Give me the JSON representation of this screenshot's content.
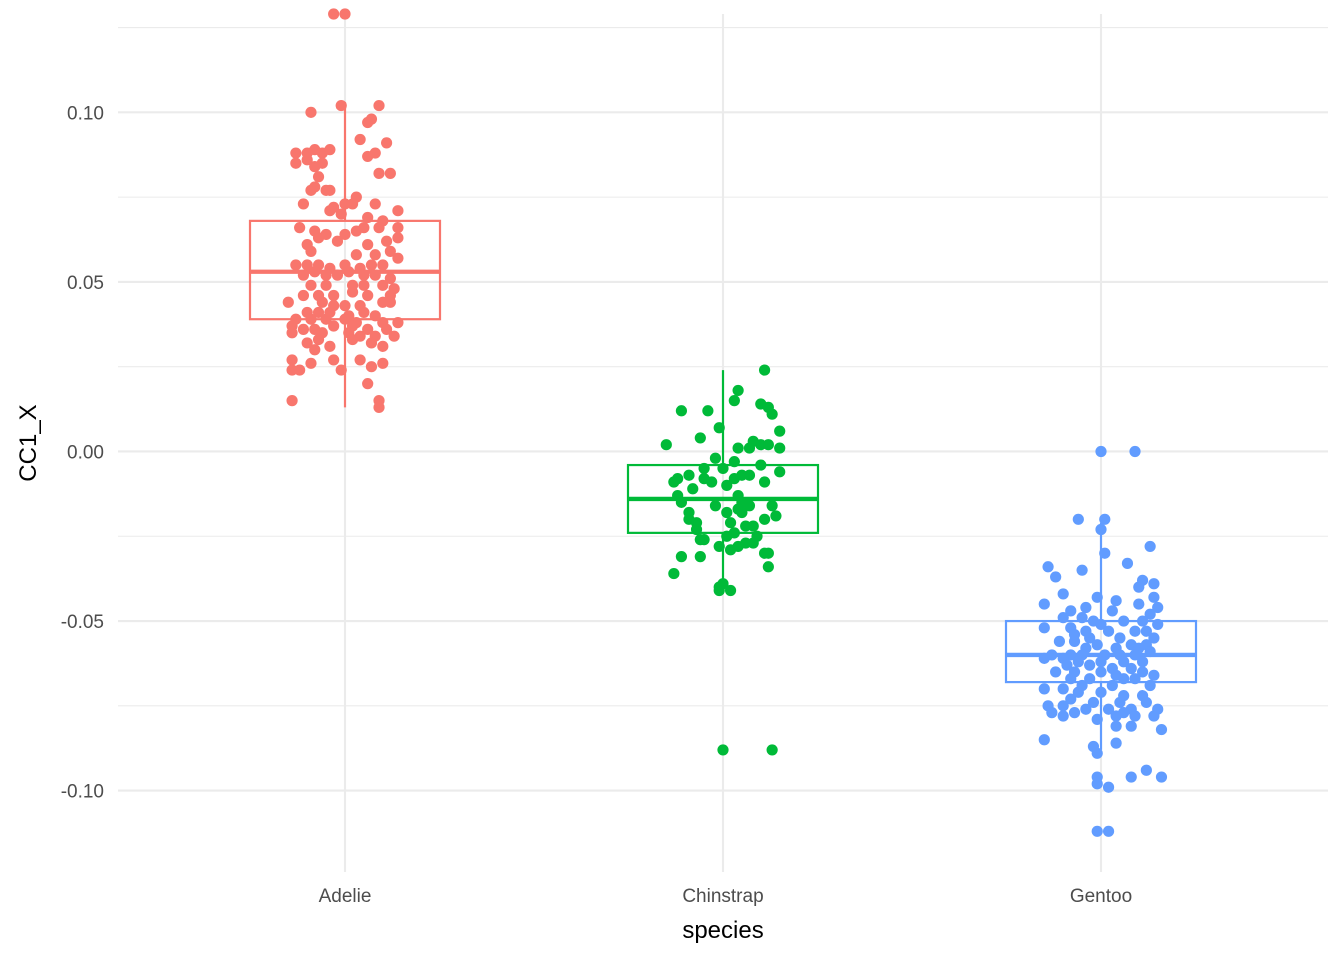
{
  "chart_data": {
    "type": "box_jitter",
    "xlabel": "species",
    "ylabel": "CC1_X",
    "ylim": [
      -0.124,
      0.129
    ],
    "yticks": [
      -0.1,
      -0.05,
      0.0,
      0.05,
      0.1
    ],
    "ytick_labels": [
      "-0.10",
      "-0.05",
      "0.00",
      "0.05",
      "0.10"
    ],
    "grid": true,
    "legend": "none",
    "categories": [
      "Adelie",
      "Chinstrap",
      "Gentoo"
    ],
    "colors": {
      "Adelie": "#F8766D",
      "Chinstrap": "#00BA38",
      "Gentoo": "#619CFF"
    },
    "boxes": [
      {
        "species": "Adelie",
        "q1": 0.039,
        "median": 0.053,
        "q3": 0.068,
        "whisker_low": 0.013,
        "whisker_high": 0.103
      },
      {
        "species": "Chinstrap",
        "q1": -0.024,
        "median": -0.014,
        "q3": -0.004,
        "whisker_low": -0.041,
        "whisker_high": 0.024
      },
      {
        "species": "Gentoo",
        "q1": -0.068,
        "median": -0.06,
        "q3": -0.05,
        "whisker_low": -0.088,
        "whisker_high": -0.021
      }
    ],
    "points": {
      "Adelie": [
        [
          -0.03,
          0.129
        ],
        [
          0.0,
          0.129
        ],
        [
          -0.09,
          0.1
        ],
        [
          -0.01,
          0.102
        ],
        [
          0.09,
          0.102
        ],
        [
          0.07,
          0.098
        ],
        [
          0.06,
          0.097
        ],
        [
          0.04,
          0.092
        ],
        [
          0.11,
          0.091
        ],
        [
          -0.13,
          0.088
        ],
        [
          -0.1,
          0.088
        ],
        [
          -0.08,
          0.089
        ],
        [
          -0.06,
          0.088
        ],
        [
          -0.04,
          0.089
        ],
        [
          0.06,
          0.087
        ],
        [
          0.08,
          0.088
        ],
        [
          -0.13,
          0.085
        ],
        [
          -0.1,
          0.086
        ],
        [
          -0.06,
          0.085
        ],
        [
          -0.08,
          0.084
        ],
        [
          0.09,
          0.082
        ],
        [
          0.12,
          0.082
        ],
        [
          -0.07,
          0.081
        ],
        [
          -0.04,
          0.077
        ],
        [
          -0.09,
          0.077
        ],
        [
          -0.08,
          0.078
        ],
        [
          -0.05,
          0.077
        ],
        [
          0.03,
          0.075
        ],
        [
          -0.11,
          0.073
        ],
        [
          -0.03,
          0.072
        ],
        [
          0.0,
          0.073
        ],
        [
          0.02,
          0.073
        ],
        [
          0.08,
          0.073
        ],
        [
          0.14,
          0.071
        ],
        [
          -0.04,
          0.071
        ],
        [
          -0.01,
          0.07
        ],
        [
          0.06,
          0.069
        ],
        [
          0.1,
          0.068
        ],
        [
          -0.12,
          0.066
        ],
        [
          -0.08,
          0.065
        ],
        [
          0.03,
          0.065
        ],
        [
          0.05,
          0.066
        ],
        [
          0.09,
          0.066
        ],
        [
          0.14,
          0.066
        ],
        [
          -0.07,
          0.063
        ],
        [
          -0.05,
          0.064
        ],
        [
          0.0,
          0.064
        ],
        [
          0.14,
          0.063
        ],
        [
          -0.1,
          0.061
        ],
        [
          -0.02,
          0.062
        ],
        [
          0.06,
          0.061
        ],
        [
          0.11,
          0.062
        ],
        [
          -0.09,
          0.059
        ],
        [
          0.03,
          0.058
        ],
        [
          0.08,
          0.058
        ],
        [
          0.12,
          0.059
        ],
        [
          0.14,
          0.057
        ],
        [
          -0.13,
          0.055
        ],
        [
          -0.1,
          0.055
        ],
        [
          -0.07,
          0.055
        ],
        [
          -0.04,
          0.054
        ],
        [
          0.0,
          0.055
        ],
        [
          0.04,
          0.054
        ],
        [
          0.07,
          0.055
        ],
        [
          0.1,
          0.055
        ],
        [
          -0.11,
          0.052
        ],
        [
          -0.08,
          0.053
        ],
        [
          -0.05,
          0.052
        ],
        [
          -0.02,
          0.052
        ],
        [
          0.01,
          0.053
        ],
        [
          0.05,
          0.052
        ],
        [
          0.08,
          0.052
        ],
        [
          0.12,
          0.051
        ],
        [
          -0.09,
          0.049
        ],
        [
          -0.05,
          0.049
        ],
        [
          0.02,
          0.049
        ],
        [
          0.05,
          0.049
        ],
        [
          0.1,
          0.049
        ],
        [
          0.13,
          0.048
        ],
        [
          -0.11,
          0.046
        ],
        [
          -0.07,
          0.046
        ],
        [
          -0.03,
          0.046
        ],
        [
          0.02,
          0.047
        ],
        [
          0.06,
          0.046
        ],
        [
          0.12,
          0.046
        ],
        [
          -0.15,
          0.044
        ],
        [
          -0.06,
          0.044
        ],
        [
          -0.03,
          0.043
        ],
        [
          0.0,
          0.043
        ],
        [
          0.04,
          0.043
        ],
        [
          0.1,
          0.044
        ],
        [
          0.12,
          0.044
        ],
        [
          -0.1,
          0.041
        ],
        [
          -0.07,
          0.041
        ],
        [
          -0.04,
          0.041
        ],
        [
          0.01,
          0.04
        ],
        [
          0.05,
          0.041
        ],
        [
          0.08,
          0.04
        ],
        [
          -0.13,
          0.039
        ],
        [
          -0.09,
          0.039
        ],
        [
          -0.05,
          0.039
        ],
        [
          0.0,
          0.039
        ],
        [
          0.03,
          0.038
        ],
        [
          0.1,
          0.038
        ],
        [
          0.14,
          0.038
        ],
        [
          -0.14,
          0.037
        ],
        [
          -0.11,
          0.036
        ],
        [
          -0.08,
          0.036
        ],
        [
          -0.03,
          0.037
        ],
        [
          0.02,
          0.037
        ],
        [
          0.06,
          0.036
        ],
        [
          0.11,
          0.036
        ],
        [
          -0.14,
          0.035
        ],
        [
          -0.06,
          0.035
        ],
        [
          0.01,
          0.035
        ],
        [
          0.04,
          0.034
        ],
        [
          0.08,
          0.034
        ],
        [
          0.13,
          0.034
        ],
        [
          -0.1,
          0.032
        ],
        [
          -0.07,
          0.033
        ],
        [
          0.02,
          0.033
        ],
        [
          0.07,
          0.032
        ],
        [
          -0.04,
          0.031
        ],
        [
          0.1,
          0.031
        ],
        [
          -0.08,
          0.03
        ],
        [
          -0.14,
          0.027
        ],
        [
          -0.09,
          0.026
        ],
        [
          -0.03,
          0.027
        ],
        [
          0.04,
          0.027
        ],
        [
          0.1,
          0.026
        ],
        [
          -0.14,
          0.024
        ],
        [
          -0.12,
          0.024
        ],
        [
          -0.01,
          0.024
        ],
        [
          0.07,
          0.025
        ],
        [
          0.06,
          0.02
        ],
        [
          -0.14,
          0.015
        ],
        [
          0.09,
          0.015
        ],
        [
          0.09,
          0.013
        ]
      ],
      "Chinstrap": [
        [
          0.11,
          0.024
        ],
        [
          0.04,
          0.018
        ],
        [
          0.03,
          0.015
        ],
        [
          0.1,
          0.014
        ],
        [
          0.12,
          0.013
        ],
        [
          -0.11,
          0.012
        ],
        [
          -0.04,
          0.012
        ],
        [
          0.13,
          0.011
        ],
        [
          -0.01,
          0.007
        ],
        [
          0.15,
          0.006
        ],
        [
          -0.06,
          0.004
        ],
        [
          0.08,
          0.003
        ],
        [
          0.12,
          0.002
        ],
        [
          -0.15,
          0.002
        ],
        [
          0.1,
          0.002
        ],
        [
          0.15,
          0.001
        ],
        [
          0.04,
          0.001
        ],
        [
          0.07,
          0.001
        ],
        [
          -0.02,
          -0.002
        ],
        [
          0.03,
          -0.003
        ],
        [
          0.1,
          -0.004
        ],
        [
          -0.05,
          -0.005
        ],
        [
          0.0,
          -0.005
        ],
        [
          0.15,
          -0.006
        ],
        [
          -0.09,
          -0.007
        ],
        [
          -0.12,
          -0.008
        ],
        [
          0.05,
          -0.007
        ],
        [
          0.07,
          -0.007
        ],
        [
          -0.05,
          -0.008
        ],
        [
          -0.03,
          -0.009
        ],
        [
          0.11,
          -0.009
        ],
        [
          0.03,
          -0.008
        ],
        [
          -0.13,
          -0.009
        ],
        [
          0.01,
          -0.01
        ],
        [
          -0.08,
          -0.011
        ],
        [
          -0.12,
          -0.013
        ],
        [
          0.04,
          -0.013
        ],
        [
          -0.11,
          -0.015
        ],
        [
          0.05,
          -0.015
        ],
        [
          0.07,
          -0.016
        ],
        [
          -0.02,
          -0.016
        ],
        [
          0.04,
          -0.017
        ],
        [
          0.13,
          -0.016
        ],
        [
          -0.09,
          -0.018
        ],
        [
          0.01,
          -0.018
        ],
        [
          0.05,
          -0.018
        ],
        [
          0.14,
          -0.019
        ],
        [
          -0.09,
          -0.02
        ],
        [
          0.11,
          -0.02
        ],
        [
          -0.07,
          -0.021
        ],
        [
          0.02,
          -0.021
        ],
        [
          0.06,
          -0.022
        ],
        [
          -0.07,
          -0.023
        ],
        [
          0.08,
          -0.022
        ],
        [
          0.03,
          -0.024
        ],
        [
          0.09,
          -0.025
        ],
        [
          -0.05,
          -0.026
        ],
        [
          0.01,
          -0.025
        ],
        [
          -0.06,
          -0.026
        ],
        [
          0.06,
          -0.027
        ],
        [
          0.08,
          -0.027
        ],
        [
          -0.01,
          -0.028
        ],
        [
          0.04,
          -0.028
        ],
        [
          0.02,
          -0.029
        ],
        [
          0.11,
          -0.03
        ],
        [
          0.12,
          -0.03
        ],
        [
          -0.11,
          -0.031
        ],
        [
          -0.06,
          -0.031
        ],
        [
          0.12,
          -0.034
        ],
        [
          -0.13,
          -0.036
        ],
        [
          0.0,
          -0.039
        ],
        [
          -0.01,
          -0.04
        ],
        [
          -0.01,
          -0.041
        ],
        [
          0.02,
          -0.041
        ],
        [
          0.0,
          -0.088
        ],
        [
          0.13,
          -0.088
        ]
      ],
      "Gentoo": [
        [
          0.0,
          0.0
        ],
        [
          0.09,
          0.0
        ],
        [
          -0.06,
          -0.02
        ],
        [
          0.01,
          -0.02
        ],
        [
          0.0,
          -0.023
        ],
        [
          0.13,
          -0.028
        ],
        [
          0.01,
          -0.03
        ],
        [
          -0.14,
          -0.034
        ],
        [
          0.07,
          -0.033
        ],
        [
          -0.05,
          -0.035
        ],
        [
          -0.12,
          -0.037
        ],
        [
          0.11,
          -0.038
        ],
        [
          0.14,
          -0.039
        ],
        [
          0.1,
          -0.04
        ],
        [
          -0.1,
          -0.042
        ],
        [
          0.14,
          -0.043
        ],
        [
          -0.15,
          -0.045
        ],
        [
          -0.01,
          -0.043
        ],
        [
          0.04,
          -0.044
        ],
        [
          0.1,
          -0.045
        ],
        [
          0.15,
          -0.046
        ],
        [
          -0.08,
          -0.047
        ],
        [
          -0.04,
          -0.046
        ],
        [
          0.03,
          -0.047
        ],
        [
          0.13,
          -0.048
        ],
        [
          -0.1,
          -0.049
        ],
        [
          -0.05,
          -0.049
        ],
        [
          -0.02,
          -0.05
        ],
        [
          0.0,
          -0.051
        ],
        [
          0.06,
          -0.05
        ],
        [
          0.11,
          -0.05
        ],
        [
          0.15,
          -0.051
        ],
        [
          -0.15,
          -0.052
        ],
        [
          -0.08,
          -0.052
        ],
        [
          -0.04,
          -0.053
        ],
        [
          0.02,
          -0.053
        ],
        [
          0.09,
          -0.053
        ],
        [
          0.12,
          -0.053
        ],
        [
          -0.07,
          -0.054
        ],
        [
          -0.03,
          -0.055
        ],
        [
          0.05,
          -0.055
        ],
        [
          0.14,
          -0.055
        ],
        [
          -0.11,
          -0.056
        ],
        [
          -0.07,
          -0.056
        ],
        [
          -0.01,
          -0.057
        ],
        [
          0.08,
          -0.057
        ],
        [
          0.12,
          -0.057
        ],
        [
          -0.04,
          -0.058
        ],
        [
          0.04,
          -0.058
        ],
        [
          0.1,
          -0.058
        ],
        [
          -0.13,
          -0.06
        ],
        [
          -0.08,
          -0.06
        ],
        [
          -0.05,
          -0.06
        ],
        [
          0.01,
          -0.06
        ],
        [
          0.05,
          -0.06
        ],
        [
          0.09,
          -0.06
        ],
        [
          0.13,
          -0.059
        ],
        [
          -0.15,
          -0.061
        ],
        [
          -0.1,
          -0.061
        ],
        [
          -0.06,
          -0.062
        ],
        [
          0.0,
          -0.062
        ],
        [
          0.06,
          -0.062
        ],
        [
          0.11,
          -0.062
        ],
        [
          -0.09,
          -0.063
        ],
        [
          -0.03,
          -0.063
        ],
        [
          0.03,
          -0.064
        ],
        [
          0.08,
          -0.064
        ],
        [
          -0.12,
          -0.065
        ],
        [
          -0.07,
          -0.065
        ],
        [
          0.0,
          -0.065
        ],
        [
          0.04,
          -0.066
        ],
        [
          0.11,
          -0.065
        ],
        [
          0.14,
          -0.066
        ],
        [
          -0.08,
          -0.067
        ],
        [
          -0.03,
          -0.067
        ],
        [
          0.06,
          -0.067
        ],
        [
          0.09,
          -0.067
        ],
        [
          -0.05,
          -0.069
        ],
        [
          0.03,
          -0.069
        ],
        [
          0.13,
          -0.069
        ],
        [
          -0.15,
          -0.07
        ],
        [
          -0.1,
          -0.07
        ],
        [
          -0.06,
          -0.071
        ],
        [
          0.0,
          -0.071
        ],
        [
          0.06,
          -0.072
        ],
        [
          0.11,
          -0.072
        ],
        [
          -0.08,
          -0.073
        ],
        [
          -0.02,
          -0.074
        ],
        [
          0.05,
          -0.074
        ],
        [
          0.12,
          -0.074
        ],
        [
          -0.14,
          -0.075
        ],
        [
          -0.1,
          -0.075
        ],
        [
          -0.04,
          -0.076
        ],
        [
          0.02,
          -0.076
        ],
        [
          0.08,
          -0.076
        ],
        [
          0.15,
          -0.076
        ],
        [
          -0.13,
          -0.077
        ],
        [
          -0.07,
          -0.077
        ],
        [
          0.06,
          -0.077
        ],
        [
          -0.1,
          -0.078
        ],
        [
          -0.01,
          -0.079
        ],
        [
          0.04,
          -0.078
        ],
        [
          0.09,
          -0.078
        ],
        [
          0.14,
          -0.078
        ],
        [
          0.04,
          -0.081
        ],
        [
          0.08,
          -0.081
        ],
        [
          0.16,
          -0.082
        ],
        [
          -0.15,
          -0.085
        ],
        [
          0.04,
          -0.086
        ],
        [
          -0.02,
          -0.087
        ],
        [
          -0.01,
          -0.089
        ],
        [
          0.12,
          -0.094
        ],
        [
          0.16,
          -0.096
        ],
        [
          -0.01,
          -0.096
        ],
        [
          0.08,
          -0.096
        ],
        [
          -0.01,
          -0.098
        ],
        [
          0.02,
          -0.099
        ],
        [
          -0.01,
          -0.112
        ],
        [
          0.02,
          -0.112
        ]
      ]
    }
  }
}
